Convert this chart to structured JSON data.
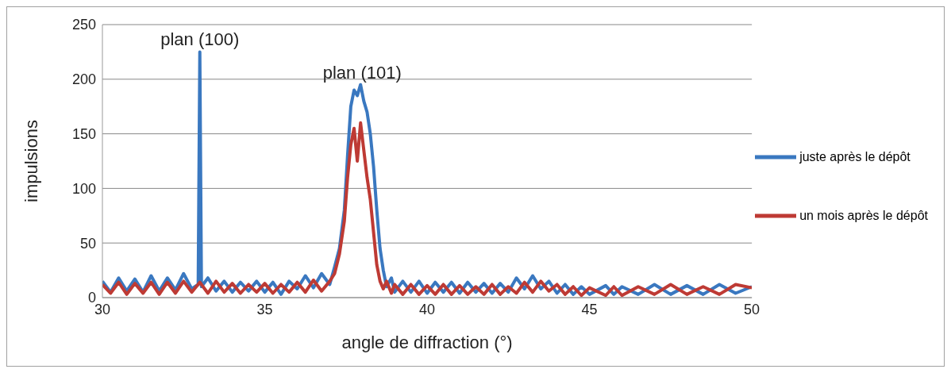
{
  "chart_data": {
    "type": "line",
    "xlabel": "angle de diffraction (°)",
    "ylabel": "impulsions",
    "xlim": [
      30,
      50
    ],
    "xticks": [
      30,
      35,
      40,
      45,
      50
    ],
    "ylim": [
      0,
      250
    ],
    "yticks": [
      0,
      50,
      100,
      150,
      200,
      250
    ],
    "grid": "y",
    "legend": "right",
    "marker": "none",
    "line_style": "solid",
    "annotations": [
      {
        "text": "plan (100)",
        "x": 33,
        "y": 225
      },
      {
        "text": "plan (101)",
        "x": 38,
        "y": 195
      }
    ],
    "series": [
      {
        "name": "juste après le dépôt",
        "color": "#3a78c0",
        "x": [
          30,
          30.25,
          30.5,
          30.75,
          31,
          31.25,
          31.5,
          31.75,
          32,
          32.25,
          32.5,
          32.75,
          32.95,
          33,
          33.05,
          33.25,
          33.5,
          33.75,
          34,
          34.25,
          34.5,
          34.75,
          35,
          35.25,
          35.5,
          35.75,
          36,
          36.25,
          36.5,
          36.75,
          37,
          37.15,
          37.3,
          37.45,
          37.55,
          37.65,
          37.75,
          37.85,
          37.95,
          38.05,
          38.15,
          38.25,
          38.35,
          38.45,
          38.55,
          38.65,
          38.75,
          38.9,
          39,
          39.25,
          39.5,
          39.75,
          40,
          40.25,
          40.5,
          40.75,
          41,
          41.25,
          41.5,
          41.75,
          42,
          42.25,
          42.5,
          42.75,
          43,
          43.25,
          43.5,
          43.75,
          44,
          44.25,
          44.5,
          44.75,
          45,
          45.5,
          45.75,
          46,
          46.5,
          47,
          47.5,
          48,
          48.5,
          49,
          49.5,
          50
        ],
        "values": [
          15,
          5,
          18,
          6,
          17,
          5,
          20,
          6,
          18,
          7,
          22,
          8,
          12,
          225,
          10,
          18,
          6,
          15,
          5,
          14,
          6,
          15,
          5,
          14,
          3,
          15,
          8,
          20,
          9,
          22,
          12,
          28,
          45,
          80,
          130,
          175,
          190,
          185,
          195,
          180,
          170,
          150,
          120,
          80,
          45,
          25,
          10,
          18,
          5,
          15,
          5,
          15,
          4,
          14,
          5,
          14,
          4,
          14,
          5,
          13,
          4,
          13,
          5,
          18,
          8,
          20,
          8,
          15,
          4,
          12,
          3,
          10,
          3,
          11,
          3,
          10,
          3,
          12,
          3,
          11,
          3,
          12,
          4,
          10
        ]
      },
      {
        "name": "un mois après le dépôt",
        "color": "#be3a34",
        "x": [
          30,
          30.25,
          30.5,
          30.75,
          31,
          31.25,
          31.5,
          31.75,
          32,
          32.25,
          32.5,
          32.75,
          33,
          33.25,
          33.5,
          33.75,
          34,
          34.25,
          34.5,
          34.75,
          35,
          35.25,
          35.5,
          35.75,
          36,
          36.25,
          36.5,
          36.75,
          37,
          37.15,
          37.3,
          37.45,
          37.55,
          37.65,
          37.75,
          37.85,
          37.95,
          38.05,
          38.15,
          38.25,
          38.35,
          38.45,
          38.55,
          38.65,
          38.75,
          38.9,
          39,
          39.25,
          39.5,
          39.75,
          40,
          40.25,
          40.5,
          40.75,
          41,
          41.25,
          41.5,
          41.75,
          42,
          42.25,
          42.5,
          42.75,
          43,
          43.25,
          43.5,
          43.75,
          44,
          44.25,
          44.5,
          44.75,
          45,
          45.5,
          45.75,
          46,
          46.5,
          47,
          47.5,
          48,
          48.5,
          49,
          49.5,
          50
        ],
        "values": [
          12,
          4,
          14,
          3,
          13,
          4,
          14,
          3,
          14,
          4,
          15,
          5,
          14,
          4,
          15,
          5,
          13,
          4,
          12,
          5,
          13,
          4,
          12,
          5,
          14,
          5,
          16,
          6,
          15,
          22,
          40,
          70,
          110,
          140,
          155,
          125,
          160,
          135,
          110,
          90,
          60,
          30,
          15,
          8,
          15,
          4,
          12,
          3,
          12,
          3,
          11,
          3,
          12,
          3,
          11,
          3,
          10,
          3,
          12,
          3,
          10,
          4,
          14,
          5,
          15,
          6,
          12,
          3,
          10,
          2,
          9,
          2,
          10,
          2,
          10,
          3,
          12,
          3,
          10,
          3,
          12,
          9
        ]
      }
    ]
  }
}
